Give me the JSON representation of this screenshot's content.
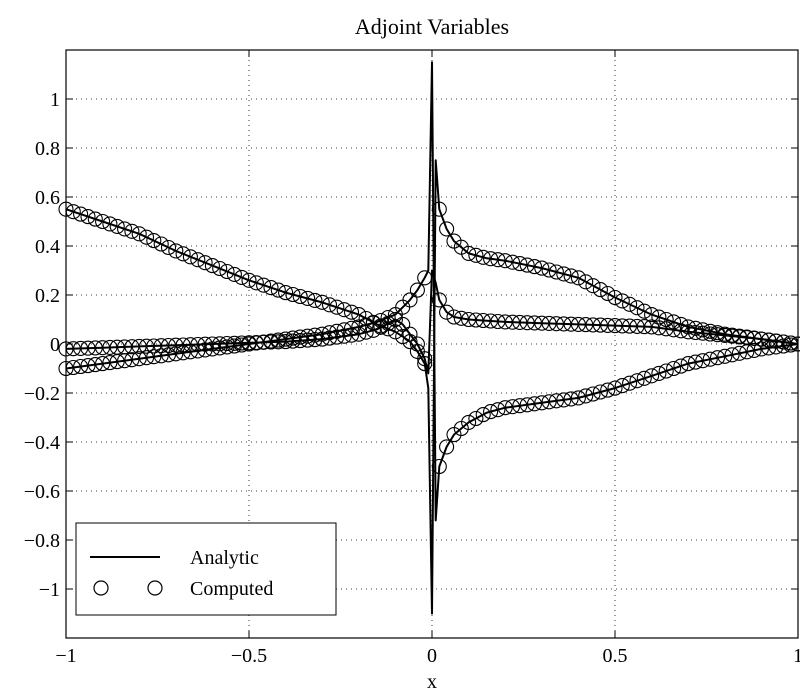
{
  "chart_data": {
    "type": "line",
    "title": "Adjoint Variables",
    "xlabel": "x",
    "ylabel": "",
    "xlim": [
      -1,
      1
    ],
    "ylim": [
      -1.2,
      1.2
    ],
    "xticks": [
      -1,
      -0.5,
      0,
      0.5,
      1
    ],
    "xtick_labels": [
      "−1",
      "−0.5",
      "0",
      "0.5",
      "1"
    ],
    "yticks": [
      -1,
      -0.8,
      -0.6,
      -0.4,
      -0.2,
      0,
      0.2,
      0.4,
      0.6,
      0.8,
      1
    ],
    "ytick_labels": [
      "−1",
      "−0.8",
      "−0.6",
      "−0.4",
      "−0.2",
      "0",
      "0.2",
      "0.4",
      "0.6",
      "0.8",
      "1"
    ],
    "grid": true,
    "legend_position": "bottom-left",
    "legend": [
      {
        "label": "Analytic",
        "style": "solid-line"
      },
      {
        "label": "Computed",
        "style": "open-circle-marker"
      }
    ],
    "series": [
      {
        "style": "solid-line",
        "x": [
          -1.0,
          -0.9,
          -0.8,
          -0.7,
          -0.6,
          -0.5,
          -0.4,
          -0.3,
          -0.2,
          -0.15,
          -0.1,
          -0.08,
          -0.06,
          -0.04,
          -0.02,
          -0.01,
          0.0,
          0.01,
          0.02,
          0.04,
          0.06,
          0.1,
          0.15,
          0.2,
          0.3,
          0.4,
          0.5,
          0.6,
          0.7,
          0.8,
          0.9,
          1.0
        ],
        "y": [
          0.55,
          0.5,
          0.45,
          0.38,
          0.32,
          0.26,
          0.21,
          0.17,
          0.12,
          0.08,
          0.05,
          0.03,
          0.01,
          -0.03,
          -0.08,
          -0.18,
          -1.1,
          0.75,
          0.55,
          0.47,
          0.42,
          0.37,
          0.35,
          0.34,
          0.31,
          0.27,
          0.19,
          0.12,
          0.07,
          0.04,
          0.02,
          0.0
        ]
      },
      {
        "style": "solid-line",
        "x": [
          -1.0,
          -0.9,
          -0.8,
          -0.7,
          -0.6,
          -0.5,
          -0.4,
          -0.3,
          -0.2,
          -0.15,
          -0.1,
          -0.08,
          -0.06,
          -0.04,
          -0.02,
          -0.01,
          0.0,
          0.01,
          0.02,
          0.04,
          0.06,
          0.1,
          0.15,
          0.2,
          0.3,
          0.4,
          0.5,
          0.6,
          0.7,
          0.8,
          0.9,
          1.0
        ],
        "y": [
          -0.1,
          -0.08,
          -0.06,
          -0.04,
          -0.02,
          0.0,
          0.02,
          0.04,
          0.07,
          0.09,
          0.12,
          0.15,
          0.18,
          0.22,
          0.27,
          0.3,
          1.15,
          -0.72,
          -0.5,
          -0.42,
          -0.37,
          -0.32,
          -0.28,
          -0.26,
          -0.24,
          -0.22,
          -0.18,
          -0.13,
          -0.08,
          -0.05,
          -0.02,
          0.0
        ]
      },
      {
        "style": "solid-line",
        "x": [
          -1.0,
          -0.9,
          -0.8,
          -0.7,
          -0.6,
          -0.5,
          -0.4,
          -0.3,
          -0.2,
          -0.15,
          -0.1,
          -0.08,
          -0.06,
          -0.04,
          -0.02,
          -0.01,
          0.0,
          0.01,
          0.02,
          0.04,
          0.06,
          0.1,
          0.15,
          0.2,
          0.3,
          0.4,
          0.5,
          0.6,
          0.7,
          0.8,
          0.9,
          1.0
        ],
        "y": [
          -0.02,
          -0.015,
          -0.01,
          -0.005,
          0.0,
          0.005,
          0.01,
          0.02,
          0.04,
          0.06,
          0.1,
          0.08,
          0.04,
          0.0,
          -0.06,
          -0.12,
          0.3,
          0.25,
          0.18,
          0.13,
          0.11,
          0.1,
          0.095,
          0.09,
          0.085,
          0.08,
          0.075,
          0.07,
          0.05,
          0.035,
          0.02,
          0.0
        ]
      }
    ]
  }
}
